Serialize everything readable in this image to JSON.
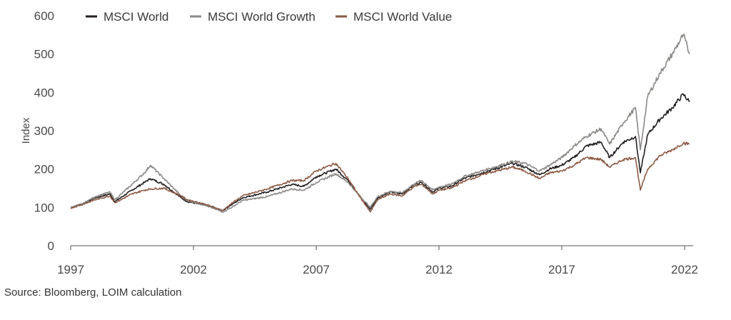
{
  "chart_data": {
    "type": "line",
    "ylabel": "Index",
    "ylim": [
      0,
      600
    ],
    "xlim": [
      1997.0,
      2022.35
    ],
    "y_ticks": [
      "0",
      "100",
      "200",
      "300",
      "400",
      "500",
      "600"
    ],
    "x_ticks": [
      "1997",
      "2002",
      "2007",
      "2012",
      "2017",
      "2022"
    ],
    "grid": false,
    "legend_position": "top-left",
    "series": [
      {
        "name": "MSCI World",
        "color": "#231f20",
        "x": [
          1997.0,
          1997.5,
          1998.0,
          1998.6,
          1998.8,
          1999.5,
          2000.0,
          2000.25,
          2000.8,
          2001.5,
          2001.75,
          2002.5,
          2003.2,
          2003.5,
          2004.0,
          2005.0,
          2006.0,
          2006.5,
          2007.0,
          2007.8,
          2008.3,
          2008.7,
          2009.2,
          2009.5,
          2010.0,
          2010.5,
          2011.0,
          2011.3,
          2011.75,
          2012.0,
          2012.5,
          2013.0,
          2014.0,
          2015.0,
          2015.5,
          2016.1,
          2016.5,
          2017.0,
          2017.5,
          2018.0,
          2018.6,
          2018.95,
          2019.5,
          2020.0,
          2020.2,
          2020.5,
          2021.0,
          2021.5,
          2021.95,
          2022.2
        ],
        "values": [
          100,
          110,
          125,
          135,
          115,
          145,
          165,
          175,
          160,
          125,
          115,
          105,
          92,
          105,
          125,
          140,
          160,
          155,
          180,
          200,
          170,
          135,
          95,
          125,
          140,
          135,
          160,
          165,
          140,
          150,
          155,
          175,
          195,
          215,
          205,
          185,
          200,
          210,
          230,
          260,
          270,
          230,
          270,
          285,
          190,
          290,
          330,
          360,
          395,
          375
        ]
      },
      {
        "name": "MSCI World Growth",
        "color": "#8c8a87",
        "x": [
          1997.0,
          1997.5,
          1998.0,
          1998.6,
          1998.8,
          1999.5,
          2000.0,
          2000.25,
          2000.8,
          2001.5,
          2001.75,
          2002.5,
          2003.2,
          2003.5,
          2004.0,
          2005.0,
          2006.0,
          2006.5,
          2007.0,
          2007.8,
          2008.3,
          2008.7,
          2009.2,
          2009.5,
          2010.0,
          2010.5,
          2011.0,
          2011.3,
          2011.75,
          2012.0,
          2012.5,
          2013.0,
          2014.0,
          2015.0,
          2015.5,
          2016.1,
          2016.5,
          2017.0,
          2017.5,
          2018.0,
          2018.6,
          2018.95,
          2019.5,
          2020.0,
          2020.2,
          2020.5,
          2021.0,
          2021.5,
          2021.95,
          2022.2
        ],
        "values": [
          100,
          110,
          128,
          140,
          120,
          160,
          190,
          210,
          175,
          130,
          118,
          105,
          88,
          98,
          118,
          128,
          148,
          145,
          165,
          188,
          165,
          135,
          100,
          128,
          142,
          138,
          162,
          170,
          145,
          153,
          160,
          180,
          200,
          220,
          215,
          195,
          210,
          230,
          260,
          285,
          305,
          265,
          320,
          360,
          250,
          390,
          450,
          500,
          550,
          500
        ]
      },
      {
        "name": "MSCI World Value",
        "color": "#8c5b45",
        "x": [
          1997.0,
          1997.5,
          1998.0,
          1998.6,
          1998.8,
          1999.5,
          2000.0,
          2000.25,
          2000.8,
          2001.5,
          2001.75,
          2002.5,
          2003.2,
          2003.5,
          2004.0,
          2005.0,
          2006.0,
          2006.5,
          2007.0,
          2007.8,
          2008.3,
          2008.7,
          2009.2,
          2009.5,
          2010.0,
          2010.5,
          2011.0,
          2011.3,
          2011.75,
          2012.0,
          2012.5,
          2013.0,
          2014.0,
          2015.0,
          2015.5,
          2016.1,
          2016.5,
          2017.0,
          2017.5,
          2018.0,
          2018.6,
          2018.95,
          2019.5,
          2020.0,
          2020.2,
          2020.5,
          2021.0,
          2021.5,
          2021.95,
          2022.2
        ],
        "values": [
          98,
          108,
          120,
          130,
          112,
          135,
          145,
          148,
          150,
          130,
          120,
          108,
          92,
          108,
          130,
          148,
          170,
          170,
          195,
          215,
          175,
          135,
          88,
          120,
          135,
          130,
          155,
          160,
          135,
          145,
          150,
          168,
          190,
          205,
          195,
          175,
          190,
          195,
          210,
          230,
          225,
          205,
          225,
          230,
          145,
          200,
          235,
          250,
          268,
          265
        ]
      }
    ]
  },
  "source_note": "Source: Bloomberg, LOIM calculation"
}
